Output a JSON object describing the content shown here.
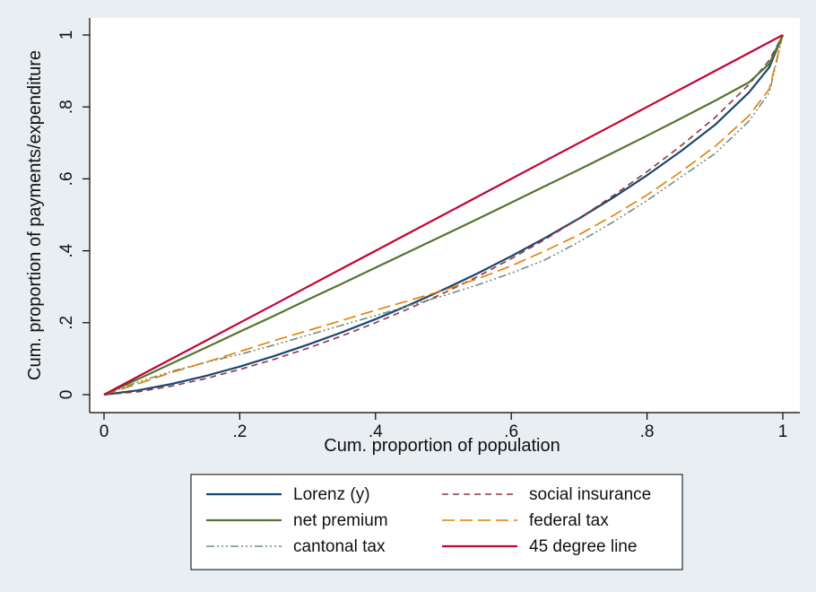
{
  "chart_data": {
    "type": "line",
    "xlabel": "Cum. proportion of population",
    "ylabel": "Cum. proportion of payments/expenditure",
    "xlim": [
      0,
      1
    ],
    "ylim": [
      0,
      1
    ],
    "x_ticks": [
      {
        "value": 0,
        "label": "0"
      },
      {
        "value": 0.2,
        "label": ".2"
      },
      {
        "value": 0.4,
        "label": ".4"
      },
      {
        "value": 0.6,
        "label": ".6"
      },
      {
        "value": 0.8,
        "label": ".8"
      },
      {
        "value": 1,
        "label": "1"
      }
    ],
    "y_ticks": [
      {
        "value": 0,
        "label": "0"
      },
      {
        "value": 0.2,
        "label": ".2"
      },
      {
        "value": 0.4,
        "label": ".4"
      },
      {
        "value": 0.6,
        "label": ".6"
      },
      {
        "value": 0.8,
        "label": ".8"
      },
      {
        "value": 1,
        "label": "1"
      }
    ],
    "grid": false,
    "legend_position": "bottom",
    "x": [
      0,
      0.05,
      0.1,
      0.15,
      0.2,
      0.25,
      0.3,
      0.35,
      0.4,
      0.45,
      0.5,
      0.55,
      0.6,
      0.65,
      0.7,
      0.75,
      0.8,
      0.85,
      0.9,
      0.95,
      0.98,
      1
    ],
    "series": [
      {
        "name": "Lorenz (y)",
        "color": "#1a476f",
        "dash": "",
        "width": 2.2,
        "values": [
          0,
          0.012,
          0.03,
          0.052,
          0.078,
          0.107,
          0.139,
          0.173,
          0.21,
          0.25,
          0.292,
          0.337,
          0.385,
          0.436,
          0.49,
          0.548,
          0.61,
          0.677,
          0.75,
          0.84,
          0.91,
          1
        ]
      },
      {
        "name": "social insurance",
        "color": "#90353b",
        "dash": "7,5",
        "width": 1.6,
        "values": [
          0,
          0.008,
          0.024,
          0.045,
          0.07,
          0.098,
          0.129,
          0.163,
          0.2,
          0.24,
          0.282,
          0.328,
          0.378,
          0.432,
          0.49,
          0.553,
          0.62,
          0.692,
          0.77,
          0.862,
          0.93,
          1
        ]
      },
      {
        "name": "net premium",
        "color": "#55752f",
        "dash": "",
        "width": 2.2,
        "values": [
          0,
          0.043,
          0.087,
          0.131,
          0.175,
          0.219,
          0.264,
          0.308,
          0.353,
          0.398,
          0.443,
          0.488,
          0.534,
          0.58,
          0.626,
          0.673,
          0.72,
          0.768,
          0.817,
          0.868,
          0.92,
          1
        ]
      },
      {
        "name": "federal tax",
        "color": "#e37e00",
        "dash": "14,6",
        "width": 1.6,
        "values": [
          0,
          0.03,
          0.062,
          0.09,
          0.12,
          0.15,
          0.178,
          0.206,
          0.235,
          0.262,
          0.29,
          0.322,
          0.358,
          0.4,
          0.445,
          0.498,
          0.555,
          0.62,
          0.69,
          0.775,
          0.85,
          1
        ]
      },
      {
        "name": "cantonal tax",
        "color": "#6e8e84",
        "dash": "9,3,2,3,2,3,2,3",
        "width": 1.6,
        "values": [
          0,
          0.035,
          0.065,
          0.09,
          0.112,
          0.138,
          0.165,
          0.193,
          0.22,
          0.248,
          0.275,
          0.305,
          0.338,
          0.375,
          0.425,
          0.48,
          0.54,
          0.605,
          0.67,
          0.76,
          0.84,
          1
        ]
      },
      {
        "name": "45 degree line",
        "color": "#c10534",
        "dash": "",
        "width": 2.2,
        "values": [
          0,
          0.05,
          0.1,
          0.15,
          0.2,
          0.25,
          0.3,
          0.35,
          0.4,
          0.45,
          0.5,
          0.55,
          0.6,
          0.65,
          0.7,
          0.75,
          0.8,
          0.85,
          0.9,
          0.95,
          0.98,
          1
        ]
      }
    ]
  }
}
